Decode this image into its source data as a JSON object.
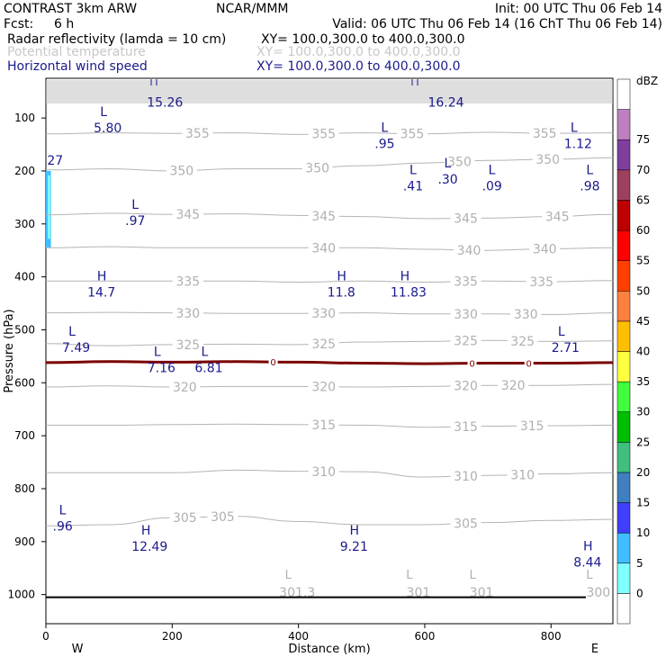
{
  "header": {
    "title": "CONTRAST   3km ARW",
    "center": "NCAR/MMM",
    "init": "Init: 00 UTC Thu 06 Feb 14",
    "fcst_label": "Fcst:",
    "fcst_value": "6 h",
    "valid": "Valid: 06 UTC Thu 06 Feb 14 (16 ChT Thu 06 Feb 14)",
    "fields": [
      {
        "name": "Radar reflectivity (lamda = 10 cm)",
        "xy": "XY= 100.0,300.0 to 400.0,300.0",
        "color": "#000000"
      },
      {
        "name": "Potential temperature",
        "xy": "XY= 100.0,300.0 to 400.0,300.0",
        "color": "#c8c8c8"
      },
      {
        "name": "Horizontal wind speed",
        "xy": "XY= 100.0,300.0 to 400.0,300.0",
        "color": "#1a1a8c"
      }
    ]
  },
  "colorbar": {
    "unit": "dBZ",
    "levels": [
      0,
      5,
      10,
      15,
      20,
      25,
      30,
      35,
      40,
      45,
      50,
      55,
      60,
      65,
      70,
      75
    ],
    "colors": [
      "#ffffff",
      "#7fffff",
      "#3fbfff",
      "#3f3fff",
      "#3f7fbf",
      "#3fbf7f",
      "#00bf00",
      "#3fff3f",
      "#ffff3f",
      "#ffbf00",
      "#ff7f3f",
      "#ff4000",
      "#ff0000",
      "#bf0000",
      "#9f3f5f",
      "#7f3f9f",
      "#bf7fbf",
      "#ffffff"
    ]
  },
  "chart_data": {
    "type": "cross-section",
    "xlabel": "Distance (km)",
    "ylabel": "Pressure (hPa)",
    "xlim": [
      0,
      898
    ],
    "ylim": [
      1055,
      25
    ],
    "xticks": [
      0,
      200,
      400,
      600,
      800
    ],
    "yticks": [
      100,
      200,
      300,
      400,
      500,
      600,
      700,
      800,
      900,
      1000
    ],
    "x_end_labels": {
      "left": "W",
      "right": "E"
    },
    "theta_contours": [
      {
        "label": "355",
        "x": [
          0,
          100,
          200,
          300,
          400,
          500,
          600,
          700,
          800,
          898
        ],
        "p": [
          130,
          128,
          129,
          128,
          131,
          128,
          130,
          127,
          129,
          128
        ],
        "label_x": [
          240,
          440,
          580,
          790
        ]
      },
      {
        "label": "350",
        "x": [
          0,
          100,
          200,
          300,
          400,
          500,
          600,
          700,
          800,
          898
        ],
        "p": [
          198,
          196,
          200,
          196,
          196,
          190,
          185,
          180,
          178,
          175
        ],
        "label_x": [
          215,
          430,
          655,
          795
        ]
      },
      {
        "label": "345",
        "x": [
          0,
          100,
          200,
          300,
          400,
          500,
          600,
          700,
          800,
          898
        ],
        "p": [
          283,
          280,
          282,
          281,
          284,
          286,
          290,
          289,
          286,
          282
        ],
        "label_x": [
          225,
          440,
          665,
          810
        ]
      },
      {
        "label": "340",
        "x": [
          0,
          100,
          200,
          300,
          400,
          500,
          600,
          700,
          800,
          898
        ],
        "p": [
          345,
          343,
          345,
          345,
          345,
          345,
          348,
          350,
          347,
          345
        ],
        "label_x": [
          440,
          670,
          790
        ]
      },
      {
        "label": "335",
        "x": [
          0,
          100,
          200,
          300,
          400,
          500,
          600,
          700,
          800,
          898
        ],
        "p": [
          408,
          408,
          408,
          408,
          410,
          408,
          410,
          408,
          409,
          407
        ],
        "label_x": [
          225,
          665,
          785
        ]
      },
      {
        "label": "330",
        "x": [
          0,
          100,
          200,
          300,
          400,
          500,
          600,
          700,
          800,
          898
        ],
        "p": [
          468,
          467,
          468,
          469,
          469,
          468,
          470,
          470,
          471,
          468
        ],
        "label_x": [
          225,
          440,
          665,
          760
        ]
      },
      {
        "label": "325",
        "x": [
          0,
          100,
          200,
          300,
          400,
          500,
          600,
          700,
          800,
          898
        ],
        "p": [
          526,
          530,
          528,
          527,
          528,
          523,
          522,
          520,
          522,
          521
        ],
        "label_x": [
          225,
          440,
          665,
          755
        ]
      },
      {
        "label": "320",
        "x": [
          0,
          100,
          200,
          300,
          400,
          500,
          600,
          700,
          800,
          898
        ],
        "p": [
          608,
          606,
          608,
          607,
          607,
          608,
          607,
          605,
          605,
          603
        ],
        "label_x": [
          220,
          440,
          665,
          740
        ]
      },
      {
        "label": "315",
        "x": [
          0,
          100,
          200,
          300,
          400,
          500,
          600,
          700,
          800,
          898
        ],
        "p": [
          680,
          680,
          679,
          678,
          679,
          680,
          684,
          682,
          681,
          680
        ],
        "label_x": [
          440,
          665,
          770
        ]
      },
      {
        "label": "310",
        "x": [
          0,
          100,
          200,
          300,
          400,
          500,
          600,
          700,
          800,
          898
        ],
        "p": [
          770,
          770,
          770,
          765,
          767,
          768,
          778,
          775,
          772,
          770
        ],
        "label_x": [
          440,
          665,
          755
        ]
      },
      {
        "label": "305",
        "x": [
          0,
          100,
          200,
          300,
          400,
          500,
          600,
          700,
          800,
          898
        ],
        "p": [
          870,
          868,
          855,
          852,
          862,
          868,
          868,
          864,
          860,
          858
        ],
        "label_x": [
          220,
          280,
          665
        ]
      }
    ],
    "theta_lows": [
      {
        "x": 398,
        "p": 980,
        "label": "301.3"
      },
      {
        "x": 590,
        "p": 980,
        "label": "301"
      },
      {
        "x": 690,
        "p": 980,
        "label": "301"
      },
      {
        "x": 875,
        "p": 980,
        "label": "300"
      }
    ],
    "zero_isotherm": {
      "x": [
        0,
        100,
        200,
        300,
        400,
        500,
        600,
        700,
        800,
        898
      ],
      "p": [
        562,
        560,
        561,
        560,
        561,
        563,
        564,
        563,
        563,
        562
      ],
      "markers_x": [
        360,
        675,
        765
      ]
    },
    "wind_highs": [
      {
        "x": 60,
        "p": 420,
        "label": "14.7"
      },
      {
        "x": 440,
        "p": 420,
        "label": "11.8"
      },
      {
        "x": 540,
        "p": 420,
        "label": "11.83"
      },
      {
        "x": 130,
        "p": 900,
        "label": "12.49"
      },
      {
        "x": 460,
        "p": 900,
        "label": "9.21"
      },
      {
        "x": 830,
        "p": 930,
        "label": "8.44"
      }
    ],
    "wind_lows": [
      {
        "x": 70,
        "p": 110,
        "label": "5.80"
      },
      {
        "x": 515,
        "p": 140,
        "label": ".95"
      },
      {
        "x": 815,
        "p": 140,
        "label": "1.12"
      },
      {
        "x": 560,
        "p": 220,
        "label": ".41"
      },
      {
        "x": 615,
        "p": 207,
        "label": ".30"
      },
      {
        "x": 685,
        "p": 220,
        "label": ".09"
      },
      {
        "x": 840,
        "p": 220,
        "label": ".98"
      },
      {
        "x": 120,
        "p": 285,
        "label": ".97"
      },
      {
        "x": 20,
        "p": 525,
        "label": "7.49"
      },
      {
        "x": 155,
        "p": 563,
        "label": "7.16"
      },
      {
        "x": 230,
        "p": 563,
        "label": "6.81"
      },
      {
        "x": 795,
        "p": 525,
        "label": "2.71"
      },
      {
        "x": 5,
        "p": 862,
        "label": ".96"
      }
    ],
    "wind_edge_values": [
      {
        "x": 160,
        "p": 70,
        "label": "15.26"
      },
      {
        "x": 605,
        "p": 70,
        "label": "16.24"
      },
      {
        "x": 2,
        "p": 180,
        "label": "27"
      }
    ],
    "reflectivity_regions": [
      {
        "dbz": 10,
        "x_range": [
          0,
          8
        ],
        "p_range": [
          200,
          345
        ]
      }
    ],
    "ground_pressure": 1005
  }
}
